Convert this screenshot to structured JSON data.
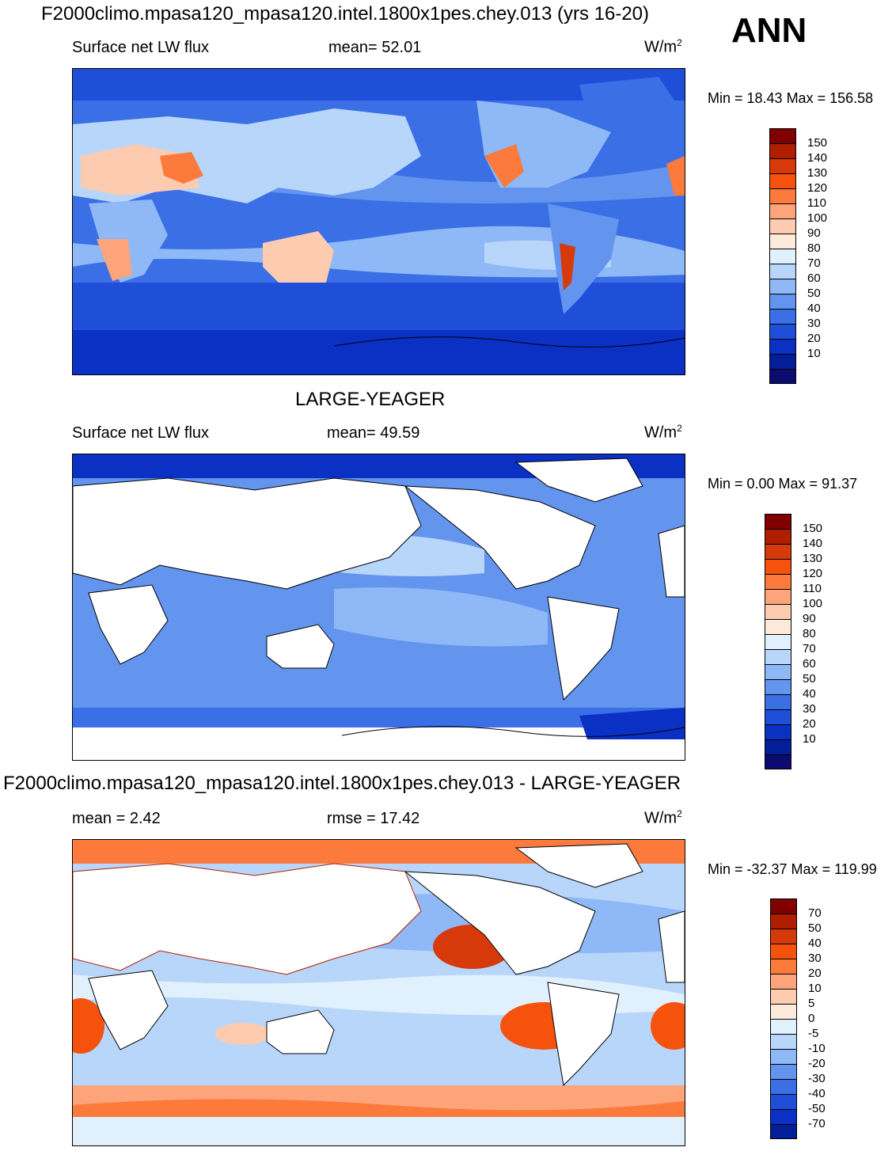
{
  "header": {
    "case_title": "F2000climo.mpasa120_mpasa120.intel.1800x1pes.chey.013 (yrs 16-20)",
    "season": "ANN"
  },
  "panels": [
    {
      "title": "",
      "variable": "Surface net LW flux",
      "mean_label": "mean=  52.01",
      "units_base": "W/m",
      "units_exp": "2",
      "min_max": "Min =  18.43 Max = 156.58",
      "colorbar": {
        "colors": [
          "#800000",
          "#b01e00",
          "#d73a0a",
          "#f5520e",
          "#fb7a3c",
          "#fda47a",
          "#fdcbb0",
          "#feeadb",
          "#e0f0fc",
          "#b8d6fa",
          "#8eb8f6",
          "#6394ee",
          "#3a6fe6",
          "#1f4fd9",
          "#0a30c4",
          "#021f99",
          "#0b0b70"
        ],
        "labels": [
          "150",
          "140",
          "130",
          "120",
          "110",
          "100",
          "90",
          "80",
          "70",
          "60",
          "50",
          "40",
          "30",
          "20",
          "10"
        ]
      }
    },
    {
      "title": "LARGE-YEAGER",
      "variable": "Surface net LW flux",
      "mean_label": "mean=  49.59",
      "units_base": "W/m",
      "units_exp": "2",
      "min_max": "Min =   0.00 Max =  91.37",
      "colorbar": {
        "colors": [
          "#800000",
          "#b01e00",
          "#d73a0a",
          "#f5520e",
          "#fb7a3c",
          "#fda47a",
          "#fdcbb0",
          "#feeadb",
          "#e0f0fc",
          "#b8d6fa",
          "#8eb8f6",
          "#6394ee",
          "#3a6fe6",
          "#1f4fd9",
          "#0a30c4",
          "#021f99",
          "#0b0b70"
        ],
        "labels": [
          "150",
          "140",
          "130",
          "120",
          "110",
          "100",
          "90",
          "80",
          "70",
          "60",
          "50",
          "40",
          "30",
          "20",
          "10"
        ]
      }
    },
    {
      "title": "F2000climo.mpasa120_mpasa120.intel.1800x1pes.chey.013 - LARGE-YEAGER",
      "mean_label": "mean =   2.42",
      "rmse_label": "rmse =  17.42",
      "units_base": "W/m",
      "units_exp": "2",
      "min_max": "Min = -32.37 Max = 119.99",
      "colorbar": {
        "colors": [
          "#800000",
          "#b01e00",
          "#d73a0a",
          "#f5520e",
          "#fb7a3c",
          "#fda47a",
          "#fdcbb0",
          "#feeadb",
          "#e0f0fc",
          "#b8d6fa",
          "#8eb8f6",
          "#6394ee",
          "#3a6fe6",
          "#1f4fd9",
          "#0a30c4",
          "#021f99"
        ],
        "labels": [
          "70",
          "50",
          "40",
          "30",
          "20",
          "10",
          "5",
          "0",
          "-5",
          "-10",
          "-20",
          "-30",
          "-40",
          "-50",
          "-70"
        ]
      }
    }
  ]
}
